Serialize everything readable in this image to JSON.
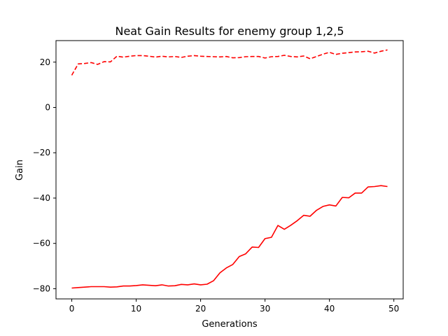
{
  "chart_data": {
    "type": "line",
    "title": "Neat Gain Results for enemy group 1,2,5",
    "xlabel": "Generations",
    "ylabel": "Gain",
    "xlim": [
      -2.45,
      51.45
    ],
    "ylim": [
      -84.5,
      29.5
    ],
    "xticks": [
      0,
      10,
      20,
      30,
      40,
      50
    ],
    "yticks": [
      -80,
      -60,
      -40,
      -20,
      0,
      20
    ],
    "grid": false,
    "legend": "none",
    "x": [
      0,
      1,
      2,
      3,
      4,
      5,
      6,
      7,
      8,
      9,
      10,
      11,
      12,
      13,
      14,
      15,
      16,
      17,
      18,
      19,
      20,
      21,
      22,
      23,
      24,
      25,
      26,
      27,
      28,
      29,
      30,
      31,
      32,
      33,
      34,
      35,
      36,
      37,
      38,
      39,
      40,
      41,
      42,
      43,
      44,
      45,
      46,
      47,
      48,
      49
    ],
    "series": [
      {
        "style": "dashed",
        "color": "#ff0000",
        "values": [
          14.2,
          19.2,
          19.4,
          19.8,
          19.0,
          20.2,
          20.1,
          22.6,
          22.2,
          22.6,
          22.9,
          22.9,
          22.6,
          22.2,
          22.6,
          22.3,
          22.5,
          22.1,
          22.6,
          22.9,
          22.6,
          22.5,
          22.4,
          22.3,
          22.5,
          21.9,
          22.0,
          22.4,
          22.5,
          22.5,
          21.8,
          22.4,
          22.5,
          23.0,
          22.5,
          22.3,
          22.7,
          21.5,
          22.5,
          23.5,
          24.3,
          23.4,
          23.9,
          24.2,
          24.5,
          24.6,
          24.8,
          24.0,
          24.8,
          25.4
        ]
      },
      {
        "style": "solid",
        "color": "#ff0000",
        "values": [
          -79.7,
          -79.5,
          -79.3,
          -79.1,
          -79.1,
          -79.1,
          -79.3,
          -79.2,
          -78.8,
          -78.8,
          -78.6,
          -78.3,
          -78.5,
          -78.7,
          -78.3,
          -78.8,
          -78.7,
          -78.1,
          -78.3,
          -77.9,
          -78.3,
          -78.0,
          -76.5,
          -73.0,
          -70.8,
          -69.3,
          -65.8,
          -64.6,
          -61.6,
          -61.8,
          -57.9,
          -57.3,
          -52.1,
          -53.8,
          -52.0,
          -50.0,
          -47.6,
          -48.0,
          -45.4,
          -43.7,
          -43.0,
          -43.5,
          -39.7,
          -39.9,
          -37.8,
          -37.8,
          -35.1,
          -34.9,
          -34.5,
          -34.9
        ]
      }
    ]
  }
}
